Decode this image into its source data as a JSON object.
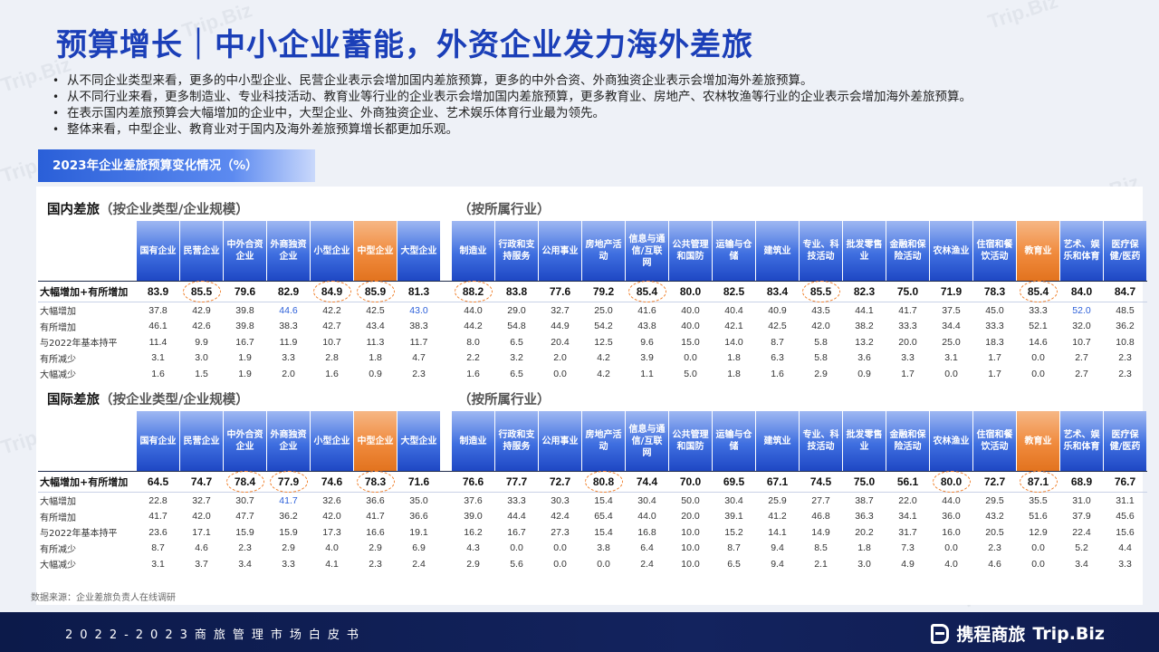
{
  "title": "预算增长｜中小企业蓄能，外资企业发力海外差旅",
  "bullets": [
    "从不同企业类型来看，更多的中小型企业、民营企业表示会增加国内差旅预算，更多的中外合资、外商独资企业表示会增加海外差旅预算。",
    "从不同行业来看，更多制造业、专业科技活动、教育业等行业的企业表示会增加国内差旅预算，更多教育业、房地产、农林牧渔等行业的企业表示会增加海外差旅预算。",
    "在表示国内差旅预算会大幅增加的企业中，大型企业、外商独资企业、艺术娱乐体育行业最为领先。",
    "整体来看，中型企业、教育业对于国内及海外差旅预算增长都更加乐观。"
  ],
  "chart_tag": "2023年企业差旅预算变化情况（%）",
  "colors": {
    "accent_blue": "#1e47c4",
    "highlight_orange": "#f08a3c",
    "circle": "#f07f2a",
    "value_blue": "#2b5fd9"
  },
  "company_cols": [
    "国有企业",
    "民营企业",
    "中外合资企业",
    "外商独资企业",
    "小型企业",
    "中型企业",
    "大型企业"
  ],
  "industry_cols": [
    "制造业",
    "行政和支持服务",
    "公用事业",
    "房地产活动",
    "信息与通信/互联网",
    "公共管理和国防",
    "运输与仓储",
    "建筑业",
    "专业、科技活动",
    "批发零售业",
    "金融和保险活动",
    "农林渔业",
    "住宿和餐饮活动",
    "教育业",
    "艺术、娱乐和体育",
    "医疗保健/医药"
  ],
  "domestic": {
    "title": "国内差旅",
    "company_sub": "（按企业类型/企业规模）",
    "industry_sub": "（按所属行业）",
    "rows": [
      {
        "label": "大幅增加+有所增加",
        "company": [
          "83.9",
          "85.5",
          "79.6",
          "82.9",
          "84.9",
          "85.9",
          "81.3"
        ],
        "industry": [
          "88.2",
          "83.8",
          "77.6",
          "79.2",
          "85.4",
          "80.0",
          "82.5",
          "83.4",
          "85.5",
          "82.3",
          "75.0",
          "71.9",
          "78.3",
          "85.4",
          "84.0",
          "84.7"
        ]
      },
      {
        "label": "大幅增加",
        "company": [
          "37.8",
          "42.9",
          "39.8",
          "44.6",
          "42.2",
          "42.5",
          "43.0"
        ],
        "industry": [
          "44.0",
          "29.0",
          "32.7",
          "25.0",
          "41.6",
          "40.0",
          "40.4",
          "40.9",
          "43.5",
          "44.1",
          "41.7",
          "37.5",
          "45.0",
          "33.3",
          "52.0",
          "48.5"
        ]
      },
      {
        "label": "有所增加",
        "company": [
          "46.1",
          "42.6",
          "39.8",
          "38.3",
          "42.7",
          "43.4",
          "38.3"
        ],
        "industry": [
          "44.2",
          "54.8",
          "44.9",
          "54.2",
          "43.8",
          "40.0",
          "42.1",
          "42.5",
          "42.0",
          "38.2",
          "33.3",
          "34.4",
          "33.3",
          "52.1",
          "32.0",
          "36.2"
        ]
      },
      {
        "label": "与2022年基本持平",
        "company": [
          "11.4",
          "9.9",
          "16.7",
          "11.9",
          "10.7",
          "11.3",
          "11.7"
        ],
        "industry": [
          "8.0",
          "6.5",
          "20.4",
          "12.5",
          "9.6",
          "15.0",
          "14.0",
          "8.7",
          "5.8",
          "13.2",
          "20.0",
          "25.0",
          "18.3",
          "14.6",
          "10.7",
          "10.8"
        ]
      },
      {
        "label": "有所减少",
        "company": [
          "3.1",
          "3.0",
          "1.9",
          "3.3",
          "2.8",
          "1.8",
          "4.7"
        ],
        "industry": [
          "2.2",
          "3.2",
          "2.0",
          "4.2",
          "3.9",
          "0.0",
          "1.8",
          "6.3",
          "5.8",
          "3.6",
          "3.3",
          "3.1",
          "1.7",
          "0.0",
          "2.7",
          "2.3"
        ]
      },
      {
        "label": "大幅减少",
        "company": [
          "1.6",
          "1.5",
          "1.9",
          "2.0",
          "1.6",
          "0.9",
          "2.3"
        ],
        "industry": [
          "1.6",
          "6.5",
          "0.0",
          "4.2",
          "1.1",
          "5.0",
          "1.8",
          "1.6",
          "2.9",
          "0.9",
          "1.7",
          "0.0",
          "1.7",
          "0.0",
          "2.7",
          "2.3"
        ]
      }
    ]
  },
  "international": {
    "title": "国际差旅",
    "company_sub": "（按企业类型/企业规模）",
    "industry_sub": "（按所属行业）",
    "rows": [
      {
        "label": "大幅增加+有所增加",
        "company": [
          "64.5",
          "74.7",
          "78.4",
          "77.9",
          "74.6",
          "78.3",
          "71.6"
        ],
        "industry": [
          "76.6",
          "77.7",
          "72.7",
          "80.8",
          "74.4",
          "70.0",
          "69.5",
          "67.1",
          "74.5",
          "75.0",
          "56.1",
          "80.0",
          "72.7",
          "87.1",
          "68.9",
          "76.7"
        ]
      },
      {
        "label": "大幅增加",
        "company": [
          "22.8",
          "32.7",
          "30.7",
          "41.7",
          "32.6",
          "36.6",
          "35.0"
        ],
        "industry": [
          "37.6",
          "33.3",
          "30.3",
          "15.4",
          "30.4",
          "50.0",
          "30.4",
          "25.9",
          "27.7",
          "38.7",
          "22.0",
          "44.0",
          "29.5",
          "35.5",
          "31.0",
          "31.1"
        ]
      },
      {
        "label": "有所增加",
        "company": [
          "41.7",
          "42.0",
          "47.7",
          "36.2",
          "42.0",
          "41.7",
          "36.6"
        ],
        "industry": [
          "39.0",
          "44.4",
          "42.4",
          "65.4",
          "44.0",
          "20.0",
          "39.1",
          "41.2",
          "46.8",
          "36.3",
          "34.1",
          "36.0",
          "43.2",
          "51.6",
          "37.9",
          "45.6"
        ]
      },
      {
        "label": "与2022年基本持平",
        "company": [
          "23.6",
          "17.1",
          "15.9",
          "15.9",
          "17.3",
          "16.6",
          "19.1"
        ],
        "industry": [
          "16.2",
          "16.7",
          "27.3",
          "15.4",
          "16.8",
          "10.0",
          "15.2",
          "14.1",
          "14.9",
          "20.2",
          "31.7",
          "16.0",
          "20.5",
          "12.9",
          "22.4",
          "15.6"
        ]
      },
      {
        "label": "有所减少",
        "company": [
          "8.7",
          "4.6",
          "2.3",
          "2.9",
          "4.0",
          "2.9",
          "6.9"
        ],
        "industry": [
          "4.3",
          "0.0",
          "0.0",
          "3.8",
          "6.4",
          "10.0",
          "8.7",
          "9.4",
          "8.5",
          "1.8",
          "7.3",
          "0.0",
          "2.3",
          "0.0",
          "5.2",
          "4.4"
        ]
      },
      {
        "label": "大幅减少",
        "company": [
          "3.1",
          "3.7",
          "3.4",
          "3.3",
          "4.1",
          "2.3",
          "2.4"
        ],
        "industry": [
          "2.9",
          "5.6",
          "0.0",
          "0.0",
          "2.4",
          "10.0",
          "6.5",
          "9.4",
          "2.1",
          "3.0",
          "4.9",
          "4.0",
          "4.6",
          "0.0",
          "3.4",
          "3.3"
        ]
      }
    ]
  },
  "source": "数据来源：企业差旅负责人在线调研",
  "footer": "2022-2023商旅管理市场白皮书",
  "brand": {
    "cn": "携程商旅",
    "en": "Trip.Biz"
  }
}
